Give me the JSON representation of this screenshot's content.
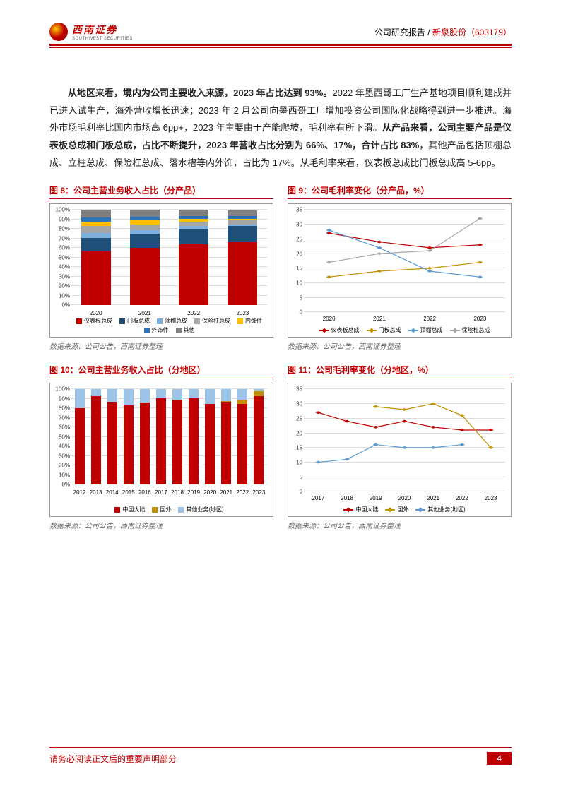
{
  "header": {
    "logo_cn": "西南证券",
    "logo_en": "SOUTHWEST SECURITIES",
    "report_type": "公司研究报告 / ",
    "company": "新泉股份",
    "ticker": "（603179）"
  },
  "body_text": "从地区来看，境内为公司主要收入来源，2023 年占比达到 93%。2022 年墨西哥工厂生产基地项目顺利建成并已进入试生产，海外营收增长迅速；2023 年 2 月公司向墨西哥工厂增加投资公司国际化战略得到进一步推进。海外市场毛利率比国内市场高 6pp+，2023 年主要由于产能爬坡，毛利率有所下滑。从产品来看，公司主要产品是仪表板总成和门板总成，占比不断提升，2023 年营收占比分别为 66%、17%，合计占比 83%，其他产品包括顶棚总成、立柱总成、保险杠总成、落水槽等内外饰，占比为 17%。从毛利率来看，仪表板总成比门板总成高 5-6pp。",
  "bold_spans": [
    "从地区来看，境内为公司主要收入来源，2023 年占比达到 93%。",
    "从产品来看，公司主要产品是仪表板总成和门板总成，占比不断提升，2023 年营收占比分别为 66%、17%，合计占比 83%"
  ],
  "source_label": "数据来源：公司公告，西南证券整理",
  "chart8": {
    "title": "图 8：公司主营业务收入占比（分产品）",
    "type": "stacked-bar",
    "ylim": [
      0,
      100
    ],
    "ytick_step": 10,
    "ytick_suffix": "%",
    "categories": [
      "2020",
      "2021",
      "2022",
      "2023"
    ],
    "series": [
      {
        "name": "仪表板总成",
        "color": "#c00000",
        "values": [
          57,
          60,
          64,
          66
        ]
      },
      {
        "name": "门板总成",
        "color": "#1f4e79",
        "values": [
          14,
          15,
          16,
          17
        ]
      },
      {
        "name": "顶棚总成",
        "color": "#7cafdd",
        "values": [
          5,
          4,
          3,
          2
        ]
      },
      {
        "name": "保险杠总成",
        "color": "#a6a6a6",
        "values": [
          7,
          6,
          5,
          4
        ]
      },
      {
        "name": "内饰件",
        "color": "#ffc000",
        "values": [
          5,
          4,
          3,
          2
        ]
      },
      {
        "name": "外饰件",
        "color": "#2e75b6",
        "values": [
          4,
          4,
          3,
          3
        ]
      },
      {
        "name": "其他",
        "color": "#808080",
        "values": [
          8,
          7,
          6,
          6
        ]
      }
    ]
  },
  "chart9": {
    "title": "图 9：公司毛利率变化（分产品，%）",
    "type": "line",
    "ylim": [
      0,
      35
    ],
    "ytick_step": 5,
    "categories": [
      "2020",
      "2021",
      "2022",
      "2023"
    ],
    "series": [
      {
        "name": "仪表板总成",
        "color": "#c00000",
        "values": [
          27,
          24,
          22,
          23
        ]
      },
      {
        "name": "门板总成",
        "color": "#bf9000",
        "values": [
          12,
          14,
          15,
          17
        ]
      },
      {
        "name": "顶棚总成",
        "color": "#5b9bd5",
        "values": [
          28,
          22,
          14,
          12
        ]
      },
      {
        "name": "保险杠总成",
        "color": "#a6a6a6",
        "values": [
          17,
          20,
          21,
          32
        ]
      }
    ]
  },
  "chart10": {
    "title": "图 10：公司主营业务收入占比（分地区）",
    "type": "stacked-bar",
    "ylim": [
      0,
      100
    ],
    "ytick_step": 10,
    "ytick_suffix": "%",
    "categories": [
      "2012",
      "2013",
      "2014",
      "2015",
      "2016",
      "2017",
      "2018",
      "2019",
      "2020",
      "2021",
      "2022",
      "2023"
    ],
    "series": [
      {
        "name": "中国大陆",
        "color": "#c00000",
        "values": [
          80,
          93,
          87,
          83,
          86,
          91,
          89,
          91,
          85,
          87,
          85,
          93
        ]
      },
      {
        "name": "国外",
        "color": "#bf9000",
        "values": [
          0,
          0,
          0,
          0,
          0,
          0,
          0,
          0,
          0,
          1,
          4,
          5
        ]
      },
      {
        "name": "其他业务(地区)",
        "color": "#9dc3e6",
        "values": [
          20,
          7,
          13,
          17,
          14,
          9,
          11,
          9,
          15,
          12,
          11,
          2
        ]
      }
    ]
  },
  "chart11": {
    "title": "图 11：公司毛利率变化（分地区，%）",
    "type": "line",
    "ylim": [
      0,
      35
    ],
    "ytick_step": 5,
    "categories": [
      "2017",
      "2018",
      "2019",
      "2020",
      "2021",
      "2022",
      "2023"
    ],
    "series": [
      {
        "name": "中国大陆",
        "color": "#c00000",
        "values": [
          27,
          24,
          22,
          24,
          22,
          21,
          21
        ]
      },
      {
        "name": "国外",
        "color": "#bf9000",
        "values": [
          null,
          null,
          29,
          28,
          30,
          26,
          15
        ]
      },
      {
        "name": "其他业务(地区)",
        "color": "#5b9bd5",
        "values": [
          10,
          11,
          16,
          15,
          15,
          16,
          null
        ]
      }
    ]
  },
  "footer": {
    "disclaimer": "请务必阅读正文后的重要声明部分",
    "page": "4"
  }
}
